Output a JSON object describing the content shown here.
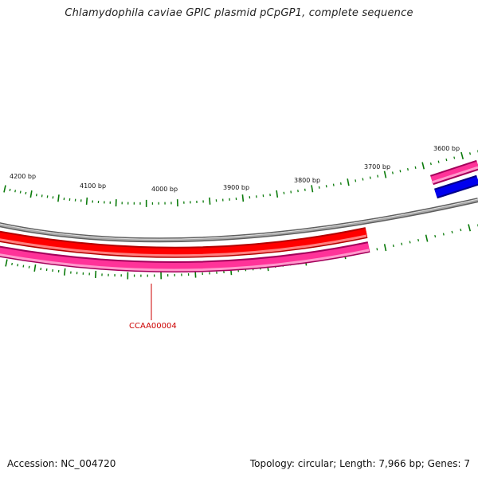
{
  "title": "Chlamydophila caviae GPIC plasmid pCpGP1, complete sequence",
  "footer": {
    "accession": "Accession: NC_004720",
    "topology": "Topology: circular; Length: 7,966 bp; Genes: 7"
  },
  "colors": {
    "backbone": "#8c8c8c",
    "forward_gene": "#ff0000",
    "reverse_gene": "#ff3399",
    "blue_feature": "#0000ee",
    "ticks": "#0a7a0a",
    "gene_label": "#cc0000"
  },
  "map": {
    "ticks": [
      {
        "bp": 4200,
        "label": "4200 bp"
      },
      {
        "bp": 4100,
        "label": "4100 bp"
      },
      {
        "bp": 4000,
        "label": "4000 bp"
      },
      {
        "bp": 3900,
        "label": "3900 bp"
      },
      {
        "bp": 3800,
        "label": "3800 bp"
      },
      {
        "bp": 3700,
        "label": "3700 bp"
      },
      {
        "bp": 3600,
        "label": "3600 bp"
      }
    ],
    "gene_labels": [
      {
        "id": "CCAA00004"
      }
    ]
  }
}
